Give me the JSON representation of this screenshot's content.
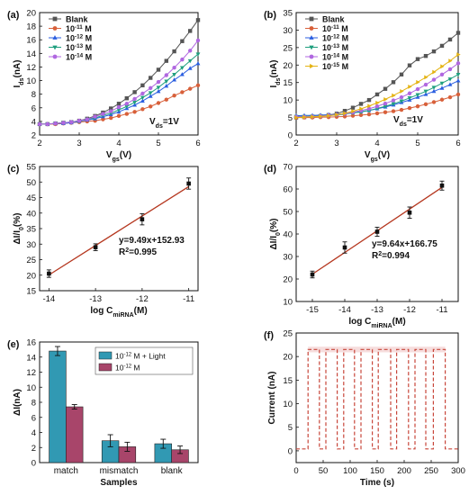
{
  "colors": {
    "blank": "#555555",
    "c11": "#d8603a",
    "c12": "#2a5ee0",
    "c13": "#1f9f7e",
    "c14": "#b067e0",
    "c15": "#e4b312",
    "fit_line": "#b5371f",
    "bar_teal": "#3199b3",
    "bar_plum": "#a8456a",
    "current": "#c8463a",
    "current_band": "#f5d9d9"
  },
  "chart_data": [
    {
      "panel": "(a)",
      "type": "line",
      "xlabel": "Vgs(V)",
      "ylabel": "Ids(nA)",
      "annotation": "Vds=1V",
      "xlim": [
        2,
        6
      ],
      "ylim": [
        2,
        20
      ],
      "xticks": [
        "2",
        "3",
        "4",
        "5",
        "6"
      ],
      "yticks": [
        "2",
        "4",
        "6",
        "8",
        "10",
        "12",
        "14",
        "16",
        "18",
        "20"
      ],
      "x": [
        2.0,
        2.2,
        2.4,
        2.6,
        2.8,
        3.0,
        3.2,
        3.4,
        3.6,
        3.8,
        4.0,
        4.2,
        4.4,
        4.6,
        4.8,
        5.0,
        5.2,
        5.4,
        5.6,
        5.8,
        6.0
      ],
      "legend_position": "top-left",
      "series": [
        {
          "name": "Blank",
          "color_key": "blank",
          "marker": "square",
          "values": [
            3.6,
            3.6,
            3.7,
            3.8,
            3.9,
            4.1,
            4.4,
            4.8,
            5.3,
            5.9,
            6.6,
            7.4,
            8.3,
            9.3,
            10.4,
            11.6,
            12.9,
            14.3,
            15.8,
            17.3,
            18.9
          ]
        },
        {
          "name": "10-11 M",
          "color_key": "c11",
          "marker": "circle",
          "values": [
            3.6,
            3.6,
            3.6,
            3.7,
            3.8,
            3.9,
            4.0,
            4.1,
            4.3,
            4.5,
            4.8,
            5.1,
            5.4,
            5.8,
            6.2,
            6.7,
            7.2,
            7.8,
            8.3,
            8.8,
            9.3
          ]
        },
        {
          "name": "10-12 M",
          "color_key": "c12",
          "marker": "triangle-up",
          "values": [
            3.6,
            3.6,
            3.7,
            3.7,
            3.8,
            4.0,
            4.2,
            4.4,
            4.7,
            5.0,
            5.4,
            5.9,
            6.4,
            7.0,
            7.7,
            8.4,
            9.2,
            10.1,
            10.9,
            11.8,
            12.5
          ]
        },
        {
          "name": "10-13 M",
          "color_key": "c13",
          "marker": "triangle-down",
          "values": [
            3.6,
            3.6,
            3.7,
            3.8,
            3.9,
            4.0,
            4.3,
            4.5,
            4.9,
            5.2,
            5.7,
            6.2,
            6.8,
            7.5,
            8.2,
            9.0,
            9.9,
            10.9,
            11.9,
            12.9,
            13.9
          ]
        },
        {
          "name": "10-14 M",
          "color_key": "c14",
          "marker": "circle",
          "values": [
            3.6,
            3.6,
            3.7,
            3.8,
            3.9,
            4.1,
            4.3,
            4.7,
            5.1,
            5.5,
            6.1,
            6.6,
            7.3,
            8.1,
            8.9,
            9.8,
            10.8,
            11.9,
            13.1,
            14.4,
            15.9
          ]
        }
      ]
    },
    {
      "panel": "(b)",
      "type": "line",
      "xlabel": "Vgs(V)",
      "ylabel": "Ids(nA)",
      "annotation": "Vds=1V",
      "xlim": [
        2,
        6
      ],
      "ylim": [
        0,
        35
      ],
      "xticks": [
        "2",
        "3",
        "4",
        "5",
        "6"
      ],
      "yticks": [
        "0",
        "5",
        "10",
        "15",
        "20",
        "25",
        "30",
        "35"
      ],
      "x": [
        2.0,
        2.2,
        2.4,
        2.6,
        2.8,
        3.0,
        3.2,
        3.4,
        3.6,
        3.8,
        4.0,
        4.2,
        4.4,
        4.6,
        4.8,
        5.0,
        5.2,
        5.4,
        5.6,
        5.8,
        6.0
      ],
      "legend_position": "top-left",
      "series": [
        {
          "name": "Blank",
          "color_key": "blank",
          "marker": "square",
          "values": [
            5.0,
            5.1,
            5.2,
            5.4,
            5.7,
            6.1,
            6.9,
            7.8,
            8.9,
            10.0,
            11.6,
            13.2,
            15.1,
            17.3,
            19.9,
            21.7,
            22.6,
            23.9,
            25.5,
            27.3,
            29.2
          ]
        },
        {
          "name": "10-11 M",
          "color_key": "c11",
          "marker": "circle",
          "values": [
            5.0,
            5.0,
            5.0,
            5.1,
            5.1,
            5.2,
            5.3,
            5.5,
            5.7,
            5.9,
            6.2,
            6.5,
            6.8,
            7.2,
            7.7,
            8.2,
            8.8,
            9.4,
            10.1,
            10.8,
            11.6
          ]
        },
        {
          "name": "10-12 M",
          "color_key": "c12",
          "marker": "triangle-up",
          "values": [
            5.5,
            5.6,
            5.6,
            5.7,
            5.8,
            5.9,
            6.1,
            6.4,
            6.7,
            7.0,
            7.5,
            8.0,
            8.6,
            9.3,
            10.0,
            10.8,
            11.6,
            12.5,
            13.4,
            14.4,
            15.5
          ]
        },
        {
          "name": "10-13 M",
          "color_key": "c13",
          "marker": "triangle-down",
          "values": [
            5.3,
            5.3,
            5.4,
            5.5,
            5.6,
            5.7,
            6.0,
            6.3,
            6.6,
            7.0,
            7.6,
            8.2,
            8.9,
            9.7,
            10.6,
            11.5,
            12.5,
            13.6,
            14.8,
            16.0,
            17.3
          ]
        },
        {
          "name": "10-14 M",
          "color_key": "c14",
          "marker": "circle",
          "values": [
            5.2,
            5.2,
            5.3,
            5.4,
            5.6,
            5.8,
            6.1,
            6.5,
            7.0,
            7.5,
            8.2,
            9.0,
            9.9,
            10.8,
            11.9,
            13.1,
            14.4,
            15.8,
            17.3,
            18.8,
            20.5
          ]
        },
        {
          "name": "10-15 M",
          "color_key": "c15",
          "marker": "triangle-right",
          "values": [
            5.0,
            5.1,
            5.2,
            5.3,
            5.5,
            5.8,
            6.2,
            6.8,
            7.5,
            8.3,
            9.2,
            10.2,
            11.3,
            12.5,
            13.8,
            15.1,
            16.5,
            18.0,
            19.6,
            21.2,
            23.0
          ]
        }
      ]
    },
    {
      "panel": "(c)",
      "type": "scatter",
      "xlabel": "log CmiRNA(M)",
      "ylabel": "ΔI/I0(%)",
      "xlim": [
        -14.2,
        -10.8
      ],
      "ylim": [
        15,
        55
      ],
      "xticks": [
        "-14",
        "-13",
        "-12",
        "-11"
      ],
      "yticks": [
        "15",
        "20",
        "25",
        "30",
        "35",
        "40",
        "45",
        "50",
        "55"
      ],
      "x": [
        -14,
        -13,
        -12,
        -11
      ],
      "values": [
        20.5,
        29.0,
        38.0,
        49.5
      ],
      "errors": [
        1.2,
        1.1,
        1.8,
        1.8
      ],
      "fit": {
        "slope": 9.49,
        "intercept": 152.93
      },
      "equation": "y=9.49x+152.93",
      "r2": "R2=0.995"
    },
    {
      "panel": "(d)",
      "type": "scatter",
      "xlabel": "log CmiRNA(M)",
      "ylabel": "ΔI/I0(%)",
      "xlim": [
        -15.5,
        -10.5
      ],
      "ylim": [
        10,
        70
      ],
      "xticks": [
        "-15",
        "-14",
        "-13",
        "-12",
        "-11"
      ],
      "yticks": [
        "10",
        "20",
        "30",
        "40",
        "50",
        "60",
        "70"
      ],
      "x": [
        -15,
        -14,
        -13,
        -12,
        -11
      ],
      "values": [
        22.0,
        34.0,
        41.0,
        49.5,
        61.5
      ],
      "errors": [
        1.5,
        2.5,
        2.0,
        2.5,
        2.0
      ],
      "fit": {
        "slope": 9.64,
        "intercept": 166.75
      },
      "equation": "y=9.64x+166.75",
      "r2": "R2=0.994"
    },
    {
      "panel": "(e)",
      "type": "bar",
      "xlabel": "Samples",
      "ylabel": "ΔI(nA)",
      "ylim": [
        0,
        16
      ],
      "yticks": [
        "0",
        "2",
        "4",
        "6",
        "8",
        "10",
        "12",
        "14",
        "16"
      ],
      "categories": [
        "match",
        "mismatch",
        "blank"
      ],
      "legend_position": "top-right",
      "series": [
        {
          "name": "10-12 M + Light",
          "color_key": "bar_teal",
          "values": [
            14.8,
            2.9,
            2.5
          ],
          "errors": [
            0.6,
            0.8,
            0.6
          ]
        },
        {
          "name": "10-12 M",
          "color_key": "bar_plum",
          "values": [
            7.4,
            2.1,
            1.7
          ],
          "errors": [
            0.3,
            0.6,
            0.5
          ]
        }
      ]
    },
    {
      "panel": "(f)",
      "type": "line",
      "xlabel": "Time (s)",
      "ylabel": "Current (nA)",
      "xlim": [
        0,
        300
      ],
      "ylim": [
        -2.5,
        25
      ],
      "xticks": [
        "0",
        "50",
        "100",
        "150",
        "200",
        "250",
        "300"
      ],
      "yticks": [
        "0",
        "5",
        "10",
        "15",
        "20",
        "25"
      ],
      "on_current": 21.5,
      "off_current": 0.4,
      "on_intervals": [
        [
          22,
          43
        ],
        [
          55,
          76
        ],
        [
          88,
          108
        ],
        [
          120,
          141
        ],
        [
          152,
          175
        ],
        [
          186,
          208
        ],
        [
          220,
          240
        ],
        [
          254,
          276
        ]
      ]
    }
  ]
}
